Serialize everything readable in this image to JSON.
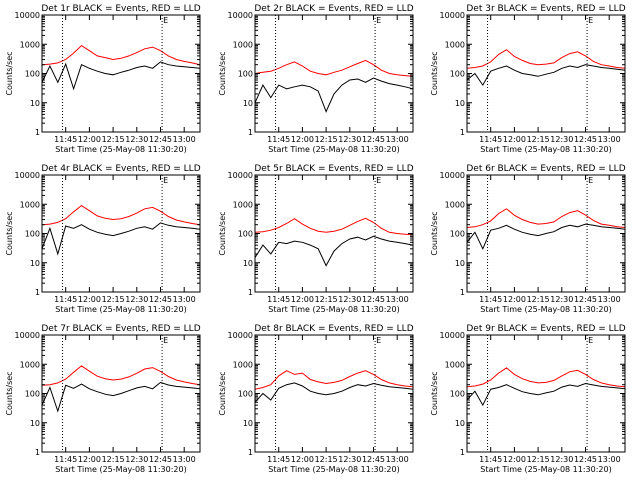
{
  "chart_data": {
    "type": "line",
    "layout": "3x3 grid of panels",
    "y_scale": "log",
    "ylim": [
      1,
      10000
    ],
    "y_ticks": [
      1,
      10,
      100,
      1000,
      10000
    ],
    "y_tick_labels": [
      "1",
      "10",
      "100",
      "1000",
      "10000"
    ],
    "ylabel": "Counts/sec",
    "xlabel": "Start Time (25-May-08 11:30:20)",
    "xlim_minutes": [
      0,
      100
    ],
    "x_ticks": [
      {
        "minute": 15,
        "label": "11:45"
      },
      {
        "minute": 30,
        "label": "12:00"
      },
      {
        "minute": 45,
        "label": "12:15"
      },
      {
        "minute": 60,
        "label": "12:30"
      },
      {
        "minute": 75,
        "label": "12:45"
      },
      {
        "minute": 90,
        "label": "13:00"
      }
    ],
    "vlines_minutes": [
      13,
      76
    ],
    "vline_style": "dotted",
    "marker": "E",
    "colors": {
      "events": "#000000",
      "lld": "#ff0000"
    },
    "panels": [
      {
        "title": "Det 1r BLACK = Events, RED = LLD",
        "series": [
          {
            "name": "LLD",
            "color": "#ff0000",
            "x": [
              0,
              5,
              10,
              15,
              20,
              25,
              30,
              35,
              40,
              45,
              50,
              55,
              60,
              65,
              70,
              75,
              80,
              85,
              90,
              95,
              100
            ],
            "y": [
              200,
              210,
              230,
              300,
              500,
              900,
              600,
              400,
              350,
              300,
              330,
              400,
              520,
              700,
              800,
              600,
              400,
              300,
              260,
              230,
              200
            ]
          },
          {
            "name": "Events",
            "color": "#000000",
            "x": [
              0,
              5,
              10,
              15,
              20,
              25,
              30,
              35,
              40,
              45,
              50,
              55,
              60,
              65,
              70,
              75,
              80,
              85,
              90,
              95,
              100
            ],
            "y": [
              50,
              180,
              50,
              210,
              30,
              200,
              150,
              120,
              100,
              90,
              110,
              130,
              160,
              180,
              150,
              250,
              200,
              180,
              170,
              160,
              150
            ]
          }
        ]
      },
      {
        "title": "Det 2r BLACK = Events, RED = LLD",
        "series": [
          {
            "name": "LLD",
            "color": "#ff0000",
            "x": [
              0,
              5,
              10,
              15,
              20,
              25,
              30,
              35,
              40,
              45,
              50,
              55,
              60,
              65,
              70,
              75,
              80,
              85,
              90,
              95,
              100
            ],
            "y": [
              100,
              110,
              120,
              150,
              200,
              250,
              180,
              120,
              100,
              90,
              110,
              130,
              170,
              220,
              280,
              200,
              130,
              100,
              90,
              85,
              80
            ]
          },
          {
            "name": "Events",
            "color": "#000000",
            "x": [
              0,
              5,
              10,
              15,
              20,
              25,
              30,
              35,
              40,
              45,
              50,
              55,
              60,
              65,
              70,
              75,
              80,
              85,
              90,
              95,
              100
            ],
            "y": [
              10,
              40,
              15,
              40,
              30,
              35,
              40,
              35,
              25,
              5,
              20,
              40,
              60,
              65,
              50,
              70,
              55,
              45,
              40,
              35,
              30
            ]
          }
        ]
      },
      {
        "title": "Det 3r BLACK = Events, RED = LLD",
        "series": [
          {
            "name": "LLD",
            "color": "#ff0000",
            "x": [
              0,
              5,
              10,
              15,
              20,
              25,
              30,
              35,
              40,
              45,
              50,
              55,
              60,
              65,
              70,
              75,
              80,
              85,
              90,
              95,
              100
            ],
            "y": [
              150,
              160,
              180,
              250,
              450,
              650,
              380,
              280,
              220,
              200,
              210,
              230,
              350,
              480,
              550,
              400,
              260,
              200,
              180,
              160,
              150
            ]
          },
          {
            "name": "Events",
            "color": "#000000",
            "x": [
              0,
              5,
              10,
              15,
              20,
              25,
              30,
              35,
              40,
              45,
              50,
              55,
              60,
              65,
              70,
              75,
              80,
              85,
              90,
              95,
              100
            ],
            "y": [
              60,
              100,
              40,
              120,
              150,
              180,
              130,
              100,
              90,
              80,
              95,
              110,
              150,
              180,
              160,
              200,
              180,
              160,
              150,
              140,
              130
            ]
          }
        ]
      },
      {
        "title": "Det 4r BLACK = Events, RED = LLD",
        "series": [
          {
            "name": "LLD",
            "color": "#ff0000",
            "x": [
              0,
              5,
              10,
              15,
              20,
              25,
              30,
              35,
              40,
              45,
              50,
              55,
              60,
              65,
              70,
              75,
              80,
              85,
              90,
              95,
              100
            ],
            "y": [
              200,
              210,
              240,
              320,
              550,
              900,
              600,
              400,
              330,
              300,
              320,
              380,
              500,
              700,
              780,
              580,
              380,
              290,
              250,
              220,
              200
            ]
          },
          {
            "name": "Events",
            "color": "#000000",
            "x": [
              0,
              5,
              10,
              15,
              20,
              25,
              30,
              35,
              40,
              45,
              50,
              55,
              60,
              65,
              70,
              75,
              80,
              85,
              90,
              95,
              100
            ],
            "y": [
              30,
              150,
              20,
              180,
              150,
              200,
              140,
              110,
              95,
              85,
              100,
              120,
              150,
              170,
              140,
              230,
              190,
              170,
              160,
              150,
              140
            ]
          }
        ]
      },
      {
        "title": "Det 5r BLACK = Events, RED = LLD",
        "series": [
          {
            "name": "LLD",
            "color": "#ff0000",
            "x": [
              0,
              5,
              10,
              15,
              20,
              25,
              30,
              35,
              40,
              45,
              50,
              55,
              60,
              65,
              70,
              75,
              80,
              85,
              90,
              95,
              100
            ],
            "y": [
              110,
              115,
              130,
              160,
              220,
              320,
              210,
              150,
              120,
              110,
              120,
              140,
              190,
              260,
              330,
              240,
              150,
              110,
              100,
              95,
              90
            ]
          },
          {
            "name": "Events",
            "color": "#000000",
            "x": [
              0,
              5,
              10,
              15,
              20,
              25,
              30,
              35,
              40,
              45,
              50,
              55,
              60,
              65,
              70,
              75,
              80,
              85,
              90,
              95,
              100
            ],
            "y": [
              15,
              40,
              20,
              50,
              45,
              55,
              50,
              40,
              30,
              8,
              25,
              45,
              65,
              75,
              60,
              80,
              65,
              55,
              50,
              45,
              40
            ]
          }
        ]
      },
      {
        "title": "Det 6r BLACK = Events, RED = LLD",
        "series": [
          {
            "name": "LLD",
            "color": "#ff0000",
            "x": [
              0,
              5,
              10,
              15,
              20,
              25,
              30,
              35,
              40,
              45,
              50,
              55,
              60,
              65,
              70,
              75,
              80,
              85,
              90,
              95,
              100
            ],
            "y": [
              160,
              170,
              200,
              270,
              480,
              700,
              420,
              300,
              240,
              210,
              220,
              250,
              380,
              520,
              600,
              430,
              280,
              210,
              190,
              170,
              160
            ]
          },
          {
            "name": "Events",
            "color": "#000000",
            "x": [
              0,
              5,
              10,
              15,
              20,
              25,
              30,
              35,
              40,
              45,
              50,
              55,
              60,
              65,
              70,
              75,
              80,
              85,
              90,
              95,
              100
            ],
            "y": [
              50,
              110,
              30,
              130,
              150,
              190,
              140,
              110,
              95,
              85,
              100,
              115,
              160,
              190,
              170,
              210,
              190,
              170,
              160,
              150,
              140
            ]
          }
        ]
      },
      {
        "title": "Det 7r BLACK = Events, RED = LLD",
        "series": [
          {
            "name": "LLD",
            "color": "#ff0000",
            "x": [
              0,
              5,
              10,
              15,
              20,
              25,
              30,
              35,
              40,
              45,
              50,
              55,
              60,
              65,
              70,
              75,
              80,
              85,
              90,
              95,
              100
            ],
            "y": [
              190,
              200,
              230,
              310,
              530,
              880,
              580,
              390,
              320,
              290,
              310,
              370,
              490,
              690,
              770,
              570,
              380,
              290,
              250,
              220,
              200
            ]
          },
          {
            "name": "Events",
            "color": "#000000",
            "x": [
              0,
              5,
              10,
              15,
              20,
              25,
              30,
              35,
              40,
              45,
              50,
              55,
              60,
              65,
              70,
              75,
              80,
              85,
              90,
              95,
              100
            ],
            "y": [
              40,
              160,
              25,
              190,
              150,
              210,
              145,
              115,
              95,
              85,
              100,
              125,
              155,
              175,
              145,
              240,
              195,
              175,
              165,
              155,
              145
            ]
          }
        ]
      },
      {
        "title": "Det 8r BLACK = Events, RED = LLD",
        "series": [
          {
            "name": "LLD",
            "color": "#ff0000",
            "x": [
              0,
              5,
              10,
              15,
              20,
              25,
              30,
              35,
              40,
              45,
              50,
              55,
              60,
              65,
              70,
              75,
              80,
              85,
              90,
              95,
              100
            ],
            "y": [
              140,
              160,
              200,
              400,
              600,
              450,
              500,
              300,
              250,
              220,
              240,
              280,
              380,
              500,
              600,
              450,
              300,
              230,
              200,
              180,
              170
            ]
          },
          {
            "name": "Events",
            "color": "#000000",
            "x": [
              0,
              5,
              10,
              15,
              20,
              25,
              30,
              35,
              40,
              45,
              50,
              55,
              60,
              65,
              70,
              75,
              80,
              85,
              90,
              95,
              100
            ],
            "y": [
              50,
              100,
              60,
              150,
              200,
              230,
              180,
              120,
              100,
              90,
              100,
              120,
              160,
              200,
              180,
              220,
              190,
              170,
              160,
              150,
              140
            ]
          }
        ]
      },
      {
        "title": "Det 9r BLACK = Events, RED = LLD",
        "series": [
          {
            "name": "LLD",
            "color": "#ff0000",
            "x": [
              0,
              5,
              10,
              15,
              20,
              25,
              30,
              35,
              40,
              45,
              50,
              55,
              60,
              65,
              70,
              75,
              80,
              85,
              90,
              95,
              100
            ],
            "y": [
              170,
              180,
              210,
              290,
              500,
              750,
              450,
              320,
              260,
              230,
              240,
              280,
              400,
              550,
              620,
              450,
              300,
              230,
              200,
              180,
              170
            ]
          },
          {
            "name": "Events",
            "color": "#000000",
            "x": [
              0,
              5,
              10,
              15,
              20,
              25,
              30,
              35,
              40,
              45,
              50,
              55,
              60,
              65,
              70,
              75,
              80,
              85,
              90,
              95,
              100
            ],
            "y": [
              60,
              120,
              40,
              140,
              160,
              200,
              150,
              115,
              100,
              90,
              105,
              120,
              165,
              195,
              175,
              220,
              195,
              175,
              165,
              155,
              145
            ]
          }
        ]
      }
    ]
  }
}
